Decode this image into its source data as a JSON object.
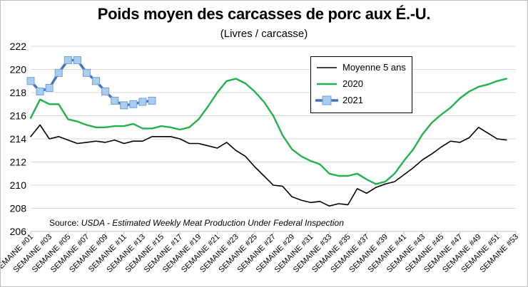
{
  "colors": {
    "avg5": "#000000",
    "y2020": "#22b14c",
    "y2021_line": "#4472c4",
    "y2021_marker_fill": "#a9cdef",
    "y2021_marker_stroke": "#6f9fd8",
    "grid": "#d9d9d9"
  },
  "chart_data": {
    "type": "line",
    "title": "Poids moyen des carcasses de porc aux É.-U.",
    "subtitle": "(Livres / carcasse)",
    "xlabel": "",
    "ylabel": "",
    "ylim": [
      206,
      222
    ],
    "yticks": [
      206,
      208,
      210,
      212,
      214,
      216,
      218,
      220,
      222
    ],
    "grid": true,
    "legend_position": "top-right",
    "x": [
      1,
      2,
      3,
      4,
      5,
      6,
      7,
      8,
      9,
      10,
      11,
      12,
      13,
      14,
      15,
      16,
      17,
      18,
      19,
      20,
      21,
      22,
      23,
      24,
      25,
      26,
      27,
      28,
      29,
      30,
      31,
      32,
      33,
      34,
      35,
      36,
      37,
      38,
      39,
      40,
      41,
      42,
      43,
      44,
      45,
      46,
      47,
      48,
      49,
      50,
      51,
      52,
      53
    ],
    "tick_labels": [
      "SEMAINE #01",
      "SEMAINE #03",
      "SEMAINE #05",
      "SEMAINE #07",
      "SEMAINE #09",
      "SEMAINE #11",
      "SEMAINE #13",
      "SEMAINE #15",
      "SEMAINE #17",
      "SEMAINE #19",
      "SEMAINE #21",
      "SEMAINE #23",
      "SEMAINE #25",
      "SEMAINE #27",
      "SEMAINE #29",
      "SEMAINE #31",
      "SEMAINE #33",
      "SEMAINE #35",
      "SEMAINE #37",
      "SEMAINE #39",
      "SEMAINE #41",
      "SEMAINE #43",
      "SEMAINE #45",
      "SEMAINE #47",
      "SEMAINE #49",
      "SEMAINE #51",
      "SEMAINE #53"
    ],
    "series": [
      {
        "name": "Moyenne 5 ans",
        "key": "avg5",
        "values": [
          214.2,
          215.2,
          214.0,
          214.2,
          213.9,
          213.6,
          213.7,
          213.8,
          213.7,
          213.9,
          213.6,
          213.8,
          213.8,
          214.2,
          214.2,
          214.2,
          214.0,
          213.6,
          213.6,
          213.4,
          213.2,
          213.7,
          213.0,
          212.5,
          211.6,
          210.8,
          210.0,
          209.9,
          209.0,
          208.7,
          208.5,
          208.6,
          208.2,
          208.4,
          208.3,
          209.7,
          209.3,
          209.8,
          210.1,
          210.3,
          210.9,
          211.5,
          212.2,
          212.7,
          213.3,
          213.8,
          213.7,
          214.1,
          215.0,
          214.5,
          214.0,
          213.9,
          null
        ]
      },
      {
        "name": "2020",
        "key": "y2020",
        "values": [
          215.8,
          217.4,
          217.0,
          217.0,
          215.7,
          215.5,
          215.2,
          215.0,
          215.0,
          215.1,
          215.1,
          215.3,
          214.9,
          214.9,
          215.1,
          215.0,
          214.8,
          215.0,
          215.7,
          216.8,
          218.0,
          219.0,
          219.2,
          218.8,
          218.1,
          217.2,
          216.0,
          214.3,
          213.1,
          212.5,
          212.1,
          211.8,
          211.0,
          210.8,
          210.8,
          211.0,
          210.5,
          210.1,
          210.3,
          211.0,
          212.1,
          213.1,
          214.4,
          215.4,
          216.1,
          216.7,
          217.5,
          218.1,
          218.5,
          218.7,
          219.0,
          219.2,
          null
        ]
      },
      {
        "name": "2021",
        "key": "y2021",
        "values": [
          219.0,
          218.1,
          218.4,
          219.7,
          220.8,
          220.8,
          219.7,
          219.0,
          218.1,
          217.3,
          216.9,
          217.0,
          217.2,
          217.3,
          null,
          null,
          null,
          null,
          null,
          null,
          null,
          null,
          null,
          null,
          null,
          null,
          null,
          null,
          null,
          null,
          null,
          null,
          null,
          null,
          null,
          null,
          null,
          null,
          null,
          null,
          null,
          null,
          null,
          null,
          null,
          null,
          null,
          null,
          null,
          null,
          null,
          null,
          null
        ]
      }
    ],
    "source_prefix": "Source: ",
    "source_text": "USDA - Estimated Weekly Meat Production Under Federal Inspection"
  }
}
